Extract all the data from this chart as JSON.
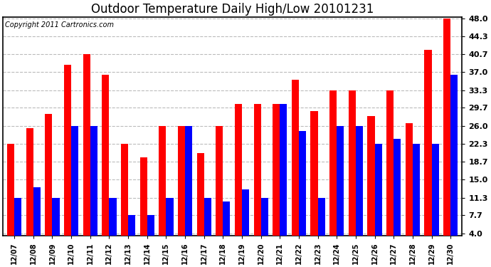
{
  "title": "Outdoor Temperature Daily High/Low 20101231",
  "copyright": "Copyright 2011 Cartronics.com",
  "labels": [
    "12/07",
    "12/08",
    "12/09",
    "12/10",
    "12/11",
    "12/12",
    "12/13",
    "12/14",
    "12/15",
    "12/16",
    "12/17",
    "12/18",
    "12/19",
    "12/20",
    "12/21",
    "12/22",
    "12/23",
    "12/24",
    "12/25",
    "12/26",
    "12/27",
    "12/28",
    "12/29",
    "12/30"
  ],
  "highs": [
    22.3,
    25.5,
    28.5,
    38.5,
    40.7,
    36.5,
    22.3,
    19.5,
    26.0,
    26.0,
    20.5,
    26.0,
    30.5,
    30.5,
    30.5,
    35.5,
    29.0,
    33.3,
    33.3,
    28.0,
    33.3,
    26.5,
    41.5,
    48.0
  ],
  "lows": [
    11.3,
    13.5,
    11.3,
    26.0,
    26.0,
    11.3,
    7.7,
    7.7,
    11.3,
    26.0,
    11.3,
    10.5,
    13.0,
    11.3,
    30.5,
    25.0,
    11.3,
    26.0,
    26.0,
    22.3,
    23.3,
    22.3,
    22.3,
    36.5
  ],
  "high_color": "#ff0000",
  "low_color": "#0000ff",
  "bg_color": "#ffffff",
  "grid_color": "#bbbbbb",
  "yticks": [
    4.0,
    7.7,
    11.3,
    15.0,
    18.7,
    22.3,
    26.0,
    29.7,
    33.3,
    37.0,
    40.7,
    44.3,
    48.0
  ],
  "ymin": 4.0,
  "ymax": 48.0,
  "bar_width": 0.38,
  "title_fontsize": 12,
  "copyright_fontsize": 7
}
